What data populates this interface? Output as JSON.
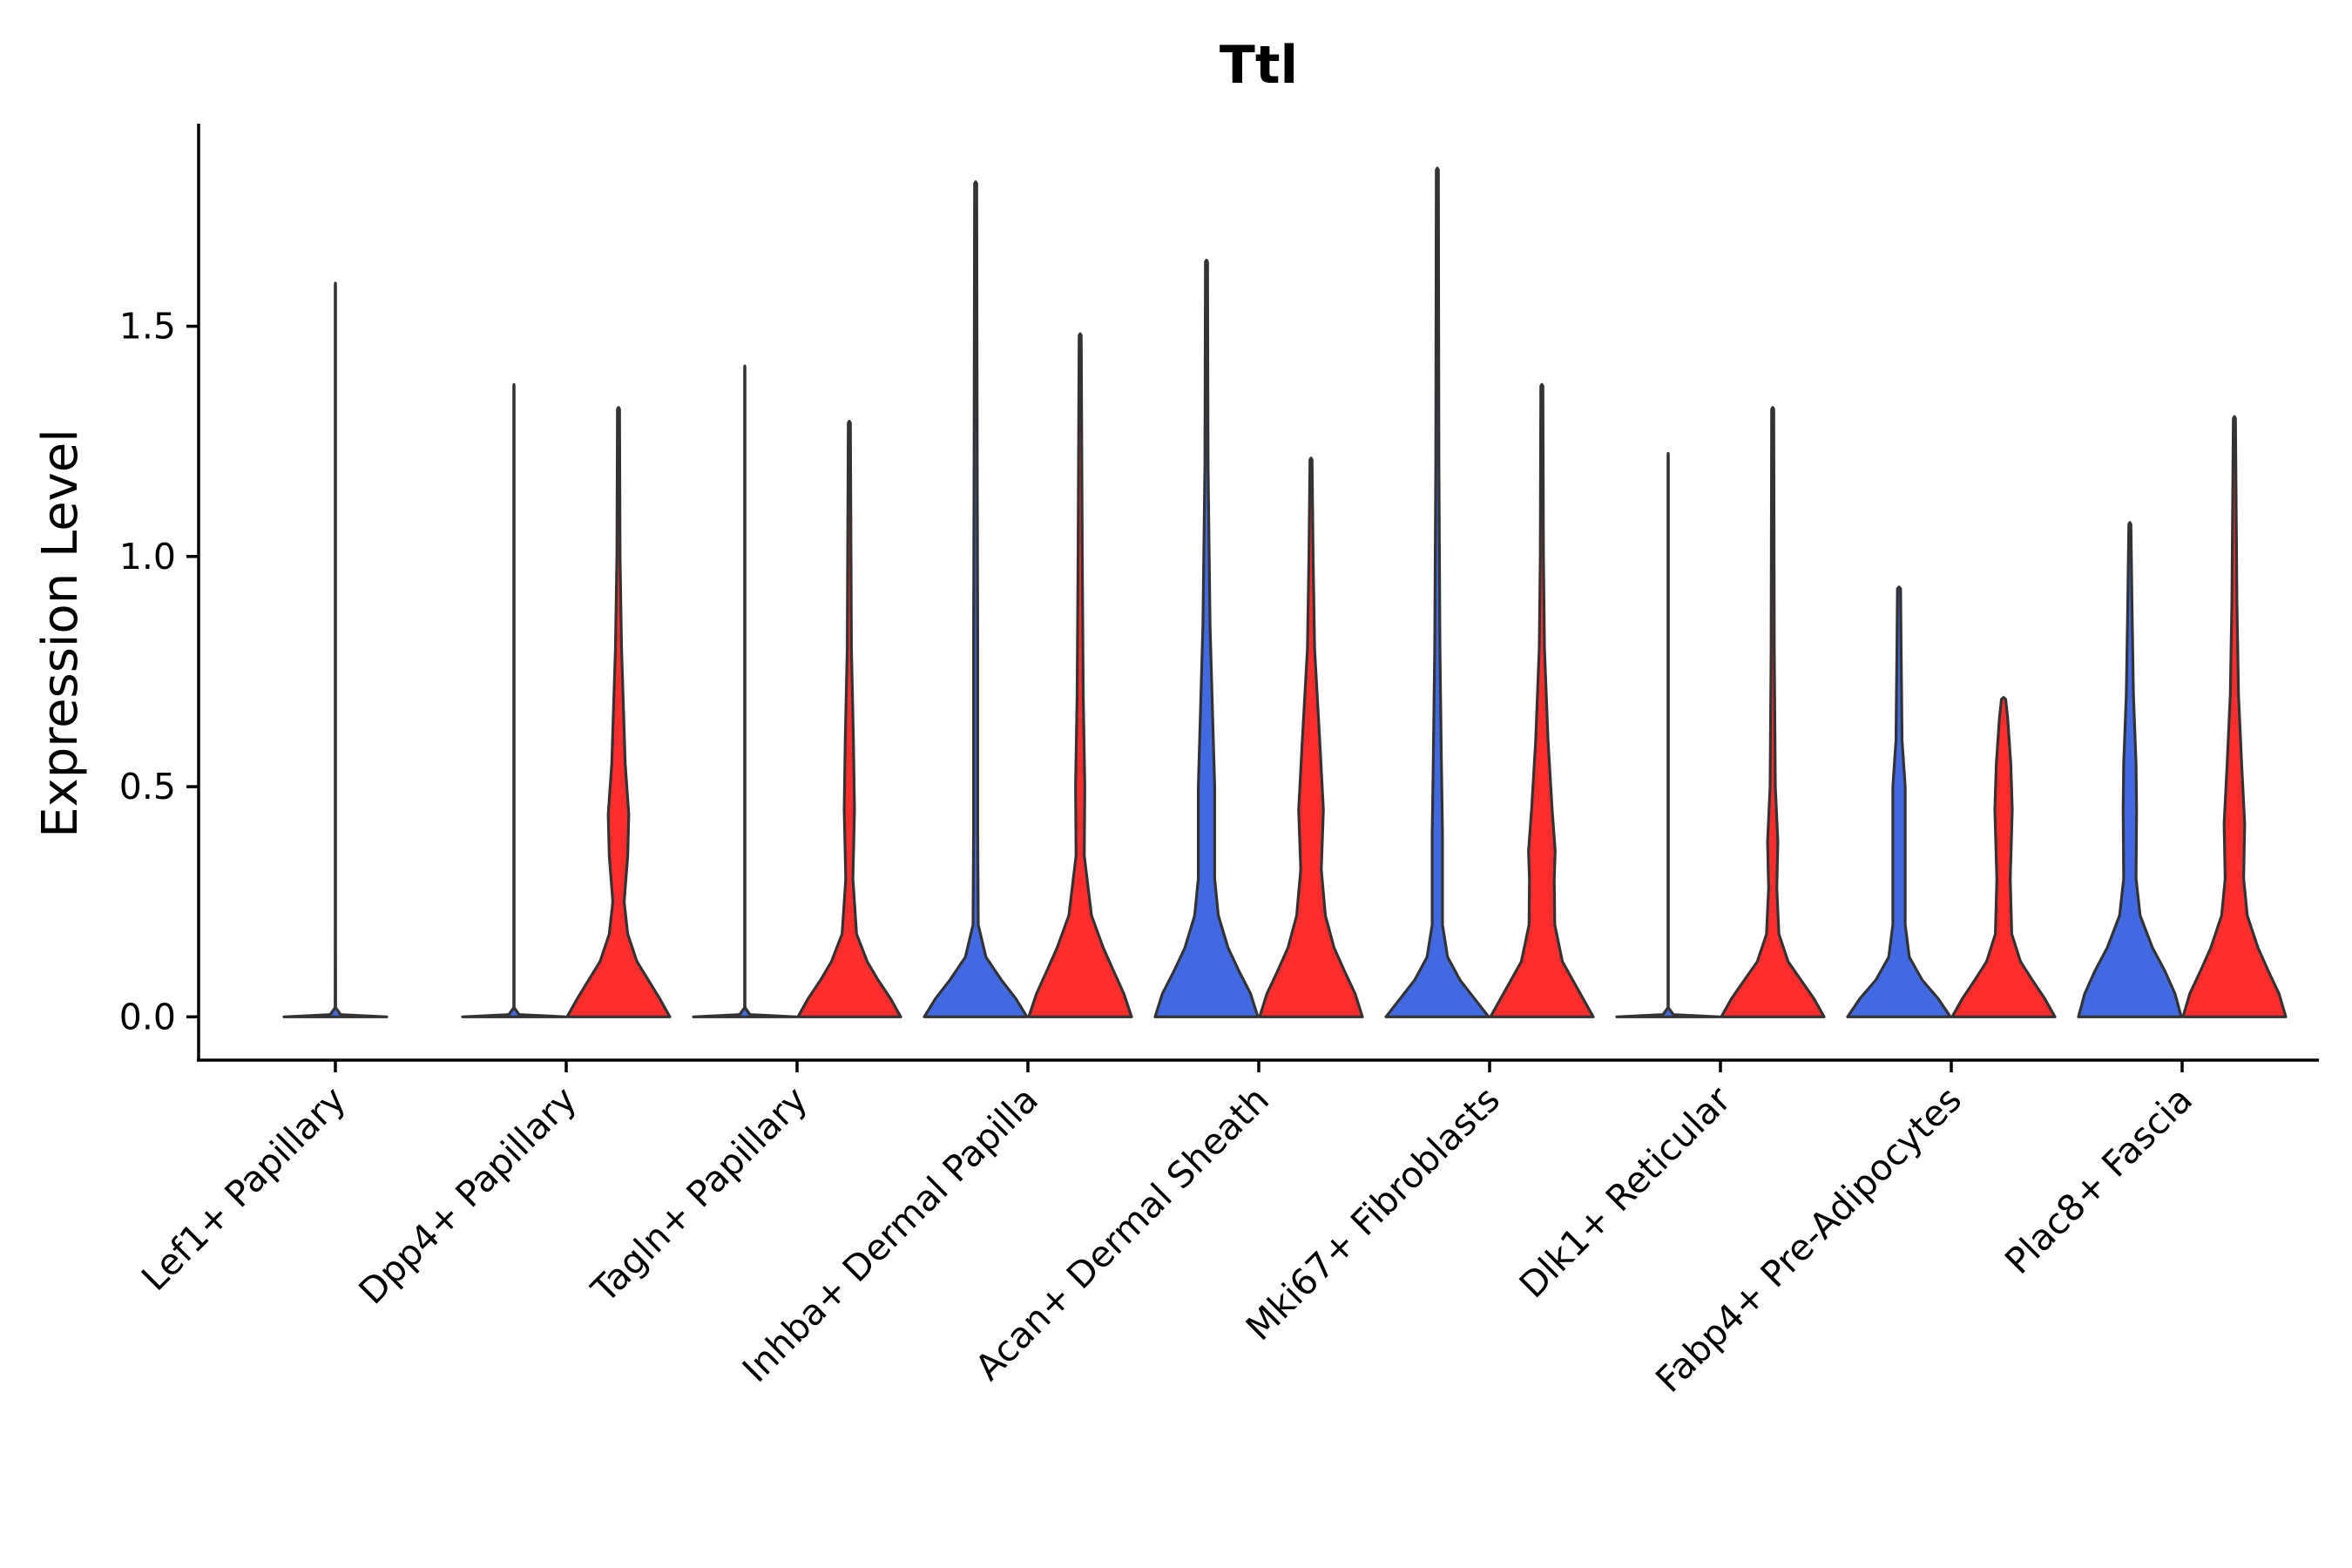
{
  "chart_data": {
    "type": "violin",
    "title": "Ttl",
    "xlabel": "",
    "ylabel": "Expression Level",
    "ylim": [
      -0.094,
      1.94
    ],
    "yticks": [
      0.0,
      0.5,
      1.0,
      1.5
    ],
    "ytick_labels": [
      "0.0",
      "0.5",
      "1.0",
      "1.5"
    ],
    "colors": {
      "blue": "#4169E1",
      "red": "#FF2D2D",
      "outline": "#333333"
    },
    "categories": [
      "Lef1+ Papillary",
      "Dpp4+ Papillary",
      "Tagln+ Papillary",
      "Inhba+ Dermal Papilla",
      "Acan+ Dermal Sheath",
      "Mki67+ Fibroblasts",
      "Dlk1+ Reticular",
      "Fabp4+ Pre-Adipocytes",
      "Plac8+ Fascia"
    ],
    "series": [
      {
        "name": "blue",
        "color": "#4169E1",
        "max_values": [
          1.59,
          1.37,
          1.41,
          1.81,
          1.64,
          1.84,
          1.22,
          0.93,
          1.07
        ],
        "density": [
          [
            [
              0,
              1
            ],
            [
              0.005,
              0.1
            ],
            [
              0.02,
              0.005
            ],
            [
              0.2,
              0.004
            ],
            [
              1.59,
              0.003
            ]
          ],
          [
            [
              0,
              1
            ],
            [
              0.005,
              0.1
            ],
            [
              0.02,
              0.004
            ],
            [
              1.37,
              0.003
            ]
          ],
          [
            [
              0,
              1
            ],
            [
              0.005,
              0.1
            ],
            [
              0.02,
              0.004
            ],
            [
              1.41,
              0.003
            ]
          ],
          [
            [
              0,
              1
            ],
            [
              0.04,
              0.78
            ],
            [
              0.08,
              0.5
            ],
            [
              0.13,
              0.2
            ],
            [
              0.2,
              0.05
            ],
            [
              0.4,
              0.04
            ],
            [
              0.8,
              0.04
            ],
            [
              1.2,
              0.03
            ],
            [
              1.81,
              0.02
            ]
          ],
          [
            [
              0,
              1
            ],
            [
              0.05,
              0.86
            ],
            [
              0.1,
              0.63
            ],
            [
              0.15,
              0.42
            ],
            [
              0.22,
              0.23
            ],
            [
              0.3,
              0.16
            ],
            [
              0.5,
              0.16
            ],
            [
              0.65,
              0.12
            ],
            [
              0.85,
              0.07
            ],
            [
              1.2,
              0.03
            ],
            [
              1.64,
              0.02
            ]
          ],
          [
            [
              0,
              1
            ],
            [
              0.04,
              0.72
            ],
            [
              0.08,
              0.44
            ],
            [
              0.13,
              0.2
            ],
            [
              0.2,
              0.1
            ],
            [
              0.4,
              0.1
            ],
            [
              0.55,
              0.08
            ],
            [
              0.8,
              0.05
            ],
            [
              1.2,
              0.03
            ],
            [
              1.84,
              0.02
            ]
          ],
          [
            [
              0,
              1
            ],
            [
              0.005,
              0.1
            ],
            [
              0.02,
              0.004
            ],
            [
              1.22,
              0.003
            ]
          ],
          [
            [
              0,
              1
            ],
            [
              0.04,
              0.76
            ],
            [
              0.08,
              0.45
            ],
            [
              0.13,
              0.2
            ],
            [
              0.2,
              0.12
            ],
            [
              0.4,
              0.12
            ],
            [
              0.5,
              0.12
            ],
            [
              0.6,
              0.06
            ],
            [
              0.8,
              0.04
            ],
            [
              0.93,
              0.03
            ]
          ],
          [
            [
              0,
              1
            ],
            [
              0.05,
              0.88
            ],
            [
              0.1,
              0.68
            ],
            [
              0.15,
              0.44
            ],
            [
              0.22,
              0.2
            ],
            [
              0.3,
              0.12
            ],
            [
              0.45,
              0.13
            ],
            [
              0.55,
              0.12
            ],
            [
              0.7,
              0.07
            ],
            [
              0.9,
              0.04
            ],
            [
              1.07,
              0.02
            ]
          ]
        ]
      },
      {
        "name": "red",
        "color": "#FF2D2D",
        "max_values": [
          null,
          1.32,
          1.29,
          1.48,
          1.21,
          1.37,
          1.32,
          0.69,
          1.3
        ],
        "density": [
          null,
          [
            [
              0,
              1
            ],
            [
              0.04,
              0.8
            ],
            [
              0.08,
              0.58
            ],
            [
              0.12,
              0.36
            ],
            [
              0.18,
              0.18
            ],
            [
              0.25,
              0.11
            ],
            [
              0.35,
              0.18
            ],
            [
              0.44,
              0.2
            ],
            [
              0.55,
              0.13
            ],
            [
              0.8,
              0.06
            ],
            [
              1.0,
              0.03
            ],
            [
              1.32,
              0.02
            ]
          ],
          [
            [
              0,
              1
            ],
            [
              0.04,
              0.8
            ],
            [
              0.08,
              0.56
            ],
            [
              0.12,
              0.35
            ],
            [
              0.18,
              0.14
            ],
            [
              0.3,
              0.07
            ],
            [
              0.45,
              0.1
            ],
            [
              0.6,
              0.08
            ],
            [
              0.8,
              0.04
            ],
            [
              1.29,
              0.02
            ]
          ],
          [
            [
              0,
              1
            ],
            [
              0.05,
              0.85
            ],
            [
              0.1,
              0.65
            ],
            [
              0.15,
              0.45
            ],
            [
              0.22,
              0.22
            ],
            [
              0.35,
              0.08
            ],
            [
              0.5,
              0.09
            ],
            [
              0.7,
              0.06
            ],
            [
              1.0,
              0.04
            ],
            [
              1.48,
              0.02
            ]
          ],
          [
            [
              0,
              1
            ],
            [
              0.05,
              0.86
            ],
            [
              0.1,
              0.65
            ],
            [
              0.15,
              0.45
            ],
            [
              0.22,
              0.28
            ],
            [
              0.32,
              0.2
            ],
            [
              0.45,
              0.24
            ],
            [
              0.6,
              0.17
            ],
            [
              0.8,
              0.07
            ],
            [
              1.0,
              0.04
            ],
            [
              1.21,
              0.02
            ]
          ],
          [
            [
              0,
              1
            ],
            [
              0.04,
              0.8
            ],
            [
              0.08,
              0.6
            ],
            [
              0.12,
              0.4
            ],
            [
              0.2,
              0.25
            ],
            [
              0.3,
              0.24
            ],
            [
              0.36,
              0.26
            ],
            [
              0.45,
              0.2
            ],
            [
              0.6,
              0.12
            ],
            [
              0.8,
              0.05
            ],
            [
              1.0,
              0.03
            ],
            [
              1.37,
              0.02
            ]
          ],
          [
            [
              0,
              1
            ],
            [
              0.04,
              0.8
            ],
            [
              0.08,
              0.55
            ],
            [
              0.12,
              0.3
            ],
            [
              0.18,
              0.12
            ],
            [
              0.28,
              0.08
            ],
            [
              0.38,
              0.1
            ],
            [
              0.5,
              0.05
            ],
            [
              0.8,
              0.03
            ],
            [
              1.32,
              0.02
            ]
          ],
          [
            [
              0,
              1
            ],
            [
              0.04,
              0.8
            ],
            [
              0.08,
              0.56
            ],
            [
              0.12,
              0.33
            ],
            [
              0.18,
              0.16
            ],
            [
              0.3,
              0.13
            ],
            [
              0.45,
              0.17
            ],
            [
              0.55,
              0.14
            ],
            [
              0.65,
              0.08
            ],
            [
              0.69,
              0.04
            ]
          ],
          [
            [
              0,
              1
            ],
            [
              0.05,
              0.87
            ],
            [
              0.1,
              0.66
            ],
            [
              0.15,
              0.46
            ],
            [
              0.22,
              0.25
            ],
            [
              0.3,
              0.18
            ],
            [
              0.42,
              0.2
            ],
            [
              0.55,
              0.14
            ],
            [
              0.7,
              0.08
            ],
            [
              0.9,
              0.05
            ],
            [
              1.3,
              0.02
            ]
          ]
        ]
      }
    ]
  }
}
